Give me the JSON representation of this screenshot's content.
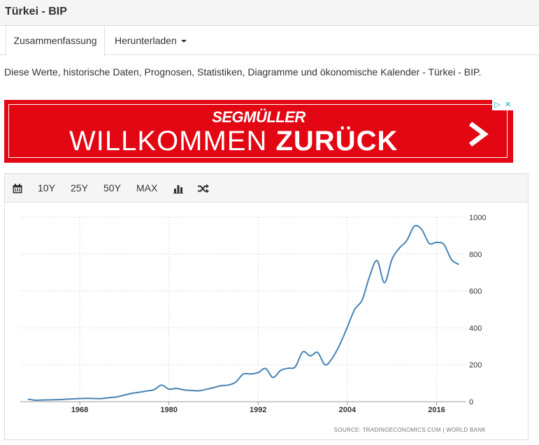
{
  "page": {
    "title": "Türkei - BIP",
    "description": "Diese Werte, historische Daten, Prognosen, Statistiken, Diagramme und ökonomische Kalender - Türkei - BIP."
  },
  "tabs": [
    {
      "label": "Zusammenfassung"
    },
    {
      "label": "Herunterladen"
    }
  ],
  "ad": {
    "brand": "SEGMÜLLER",
    "headline_light": "WILLKOMMEN",
    "headline_bold": "ZURÜCK",
    "color": "#e30613"
  },
  "toolbar": {
    "calendar_icon": "calendar-icon",
    "ranges": [
      "10Y",
      "25Y",
      "50Y",
      "MAX"
    ],
    "chart_type_icon": "bar-chart-icon",
    "compare_icon": "shuffle-icon"
  },
  "chart_data": {
    "type": "line",
    "color": "#4682b4",
    "x_ticks": [
      1968,
      1980,
      1992,
      2004,
      2016
    ],
    "y_ticks": [
      0,
      200,
      400,
      600,
      800,
      1000
    ],
    "xlim": [
      1960,
      2020
    ],
    "ylim": [
      0,
      1000
    ],
    "grid": true,
    "source": "SOURCE: TRADINGECONOMICS.COM  |  WORLD BANK",
    "x": [
      1961,
      1962,
      1963,
      1964,
      1965,
      1966,
      1967,
      1968,
      1969,
      1970,
      1971,
      1972,
      1973,
      1974,
      1975,
      1976,
      1977,
      1978,
      1979,
      1980,
      1981,
      1982,
      1983,
      1984,
      1985,
      1986,
      1987,
      1988,
      1989,
      1990,
      1991,
      1992,
      1993,
      1994,
      1995,
      1996,
      1997,
      1998,
      1999,
      2000,
      2001,
      2002,
      2003,
      2004,
      2005,
      2006,
      2007,
      2008,
      2009,
      2010,
      2011,
      2012,
      2013,
      2014,
      2015,
      2016,
      2017,
      2018,
      2019
    ],
    "values": [
      14,
      8,
      9,
      10,
      11,
      13,
      15,
      17,
      18,
      17,
      17,
      22,
      26,
      36,
      45,
      51,
      58,
      65,
      90,
      68,
      72,
      64,
      61,
      59,
      67,
      76,
      87,
      90,
      107,
      150,
      150,
      158,
      180,
      131,
      169,
      181,
      189,
      270,
      248,
      267,
      200,
      238,
      311,
      405,
      501,
      552,
      681,
      765,
      645,
      772,
      833,
      874,
      951,
      934,
      859,
      864,
      852,
      771,
      744
    ]
  }
}
